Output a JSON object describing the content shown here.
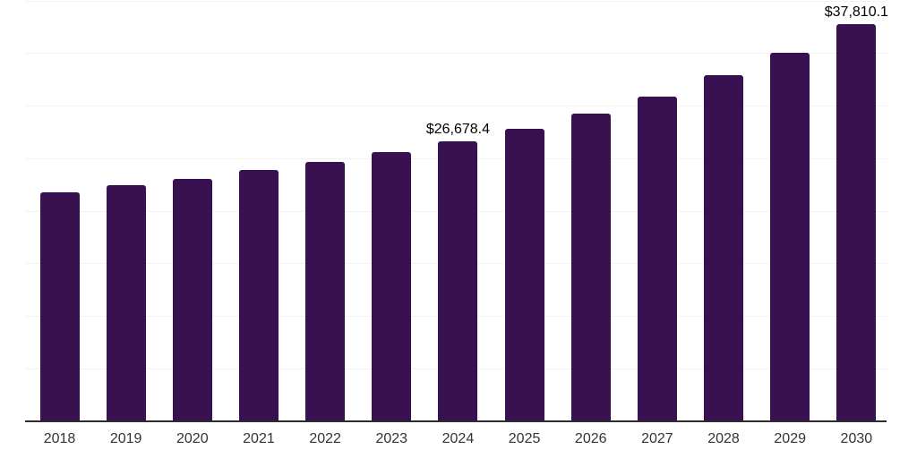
{
  "chart_data": {
    "type": "bar",
    "title": "",
    "xlabel": "",
    "ylabel": "",
    "categories": [
      "2018",
      "2019",
      "2020",
      "2021",
      "2022",
      "2023",
      "2024",
      "2025",
      "2026",
      "2027",
      "2028",
      "2029",
      "2030"
    ],
    "values": [
      21800,
      22450,
      23100,
      23900,
      24700,
      25650,
      26678.4,
      27850,
      29300,
      30900,
      32900,
      35100,
      37810.1
    ],
    "data_labels": [
      {
        "category": "2024",
        "text": "$26,678.4"
      },
      {
        "category": "2030",
        "text": "$37,810.1"
      }
    ],
    "ylim": [
      0,
      40000
    ],
    "gridline_interval": 5000,
    "grid": true,
    "legend": false,
    "colors": {
      "bar": "#3a1150",
      "gridline": "#f2f2f2",
      "axis_line": "#2d2d2d",
      "tick_label": "#333333",
      "data_label": "#000000",
      "background": "#ffffff"
    }
  }
}
